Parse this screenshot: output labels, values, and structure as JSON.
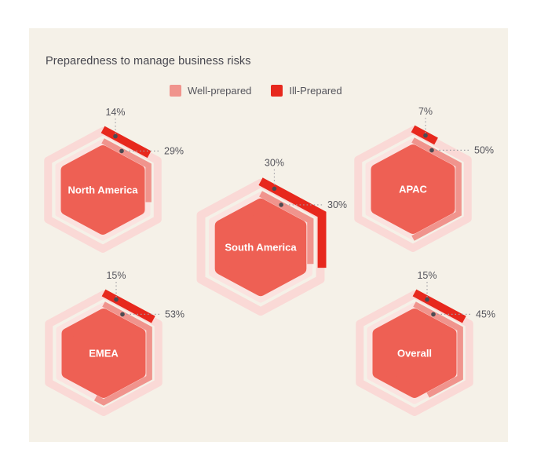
{
  "title": "Preparedness to manage business risks",
  "legend": {
    "items": [
      {
        "label": "Well-prepared",
        "color": "#F0948D"
      },
      {
        "label": "Ill-Prepared",
        "color": "#E7281D"
      }
    ]
  },
  "chart_data": {
    "type": "hexagonal-ring-gauge",
    "title": "Preparedness to manage business risks",
    "legend_entries": [
      "Well-prepared",
      "Ill-Prepared"
    ],
    "categories": [
      "North America",
      "South America",
      "APAC",
      "EMEA",
      "Overall"
    ],
    "series": [
      {
        "name": "Ill-Prepared",
        "ring": "outer",
        "color": "#E7281D",
        "track_color": "#FAD9D6",
        "values": [
          14,
          30,
          7,
          15,
          15
        ]
      },
      {
        "name": "Well-prepared",
        "ring": "inner",
        "color": "#F0948D",
        "track_color": "#FBE3E0",
        "values": [
          29,
          30,
          50,
          53,
          45
        ]
      }
    ],
    "regions": [
      {
        "label": "North America",
        "ill_prepared_label": "14%",
        "well_prepared_label": "29%"
      },
      {
        "label": "South America",
        "ill_prepared_label": "30%",
        "well_prepared_label": "30%"
      },
      {
        "label": "APAC",
        "ill_prepared_label": "7%",
        "well_prepared_label": "50%"
      },
      {
        "label": "EMEA",
        "ill_prepared_label": "15%",
        "well_prepared_label": "53%"
      },
      {
        "label": "Overall",
        "ill_prepared_label": "15%",
        "well_prepared_label": "45%"
      }
    ],
    "colors": {
      "page_background": "#FFFFFF",
      "panel_background": "#F5F1E8",
      "center_hexagon": "#EE6054",
      "center_label_text": "#FFFFFF",
      "outer_track": "#FAD9D6",
      "inner_track": "#FBE3E0",
      "ill_prepared": "#E7281D",
      "well_prepared": "#F0948D",
      "value_label_text": "#55555C",
      "leader_line": "#A0A0A5",
      "leader_dot": "#4B4B52",
      "title_text": "#47474F"
    }
  }
}
